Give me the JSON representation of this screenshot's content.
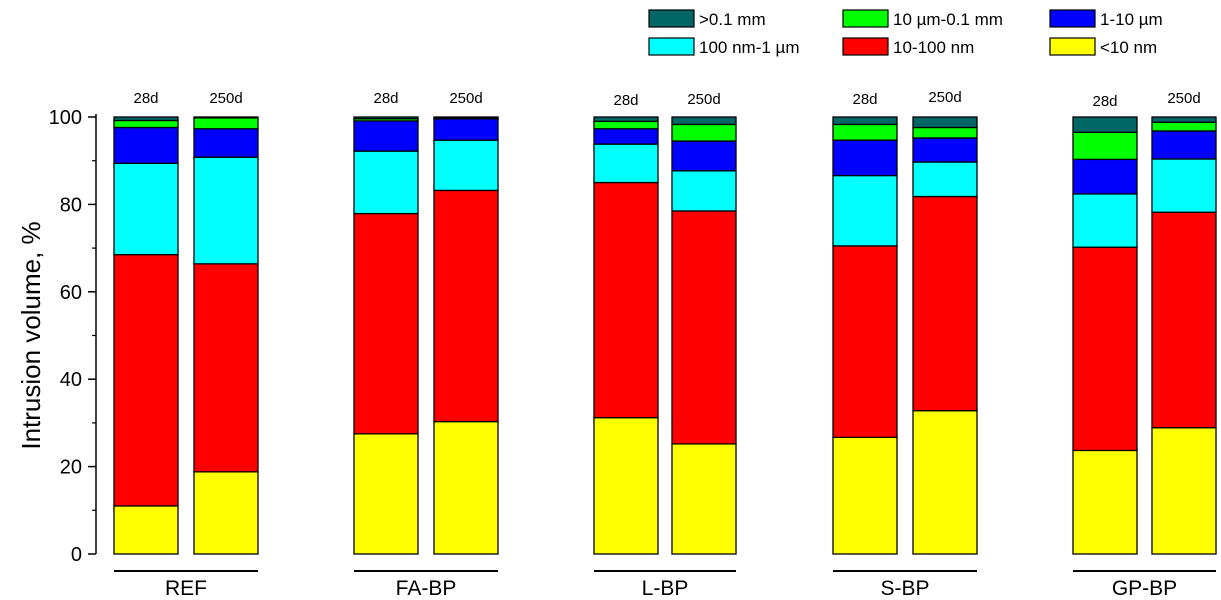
{
  "chart_data": {
    "type": "bar",
    "stacked": true,
    "title": "",
    "ylabel": "Intrusion volume, %",
    "xlabel": "",
    "ylim": [
      0,
      100
    ],
    "yticks": [
      0,
      20,
      40,
      60,
      80,
      100
    ],
    "legend_position": "top-right",
    "grid": false,
    "groups": [
      "REF",
      "FA-BP",
      "L-BP",
      "S-BP",
      "GP-BP"
    ],
    "bar_labels": [
      "28d",
      "250d"
    ],
    "series": [
      {
        "name": "<10 nm",
        "color": "#ffff00",
        "values": [
          11.0,
          18.8,
          27.5,
          30.3,
          31.2,
          25.2,
          26.7,
          32.8,
          23.7,
          28.9
        ]
      },
      {
        "name": "10-100 nm",
        "color": "#ff0000",
        "values": [
          57.5,
          47.6,
          50.4,
          52.9,
          53.8,
          53.3,
          43.8,
          49.0,
          46.5,
          49.3
        ]
      },
      {
        "name": "100 nm-1 µm",
        "color": "#00ffff",
        "values": [
          20.9,
          24.4,
          14.3,
          11.5,
          8.8,
          9.2,
          16.1,
          7.9,
          12.2,
          12.2
        ]
      },
      {
        "name": "1-10 µm",
        "color": "#0000ff",
        "values": [
          8.2,
          6.5,
          6.9,
          4.9,
          3.5,
          6.8,
          8.1,
          5.5,
          7.9,
          6.4
        ]
      },
      {
        "name": "10 µm-0.1 mm",
        "color": "#00ff00",
        "values": [
          1.6,
          2.5,
          0.5,
          0.2,
          1.7,
          3.8,
          3.6,
          2.4,
          6.2,
          2.0
        ]
      },
      {
        "name": ">0.1 mm",
        "color": "#006666",
        "values": [
          0.8,
          0.2,
          0.4,
          0.2,
          1.0,
          1.7,
          1.7,
          2.4,
          3.5,
          1.2
        ]
      }
    ],
    "legend_order": [
      ">0.1 mm",
      "10 µm-0.1 mm",
      "1-10 µm",
      "100 nm-1 µm",
      "10-100 nm",
      "<10 nm"
    ]
  }
}
